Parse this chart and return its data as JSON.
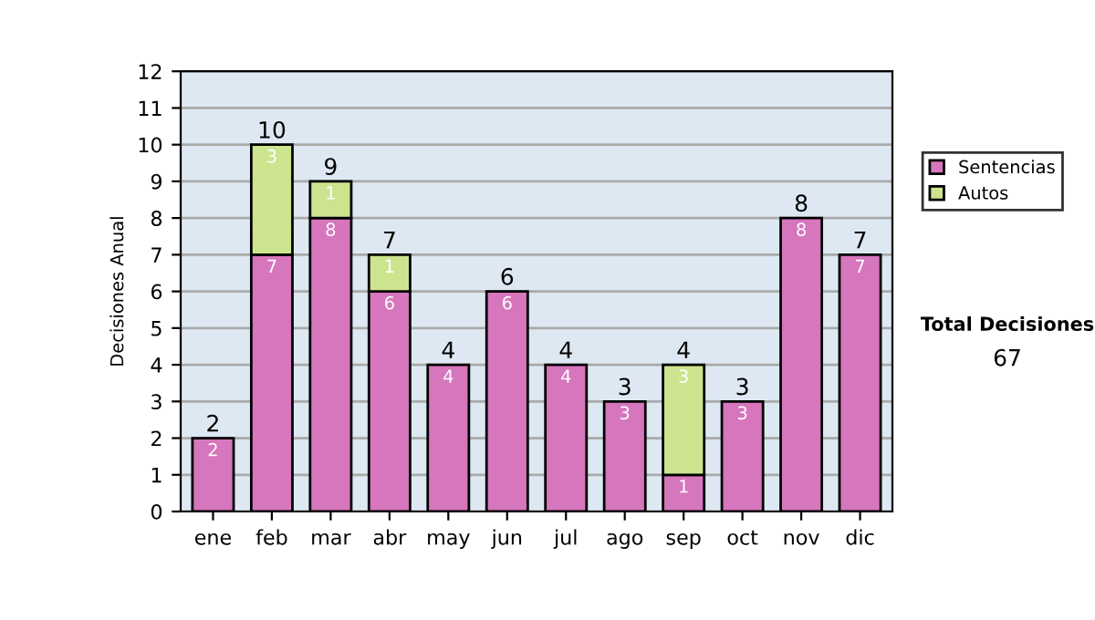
{
  "chart_data": {
    "type": "bar",
    "stacked": true,
    "ylabel": "Decisiones Anual",
    "categories": [
      "ene",
      "feb",
      "mar",
      "abr",
      "may",
      "jun",
      "jul",
      "ago",
      "sep",
      "oct",
      "nov",
      "dic"
    ],
    "series": [
      {
        "name": "Sentencias",
        "color": "#d676bd",
        "values": [
          2,
          7,
          8,
          6,
          4,
          6,
          4,
          3,
          1,
          3,
          8,
          7
        ],
        "value_labels": [
          "2",
          "7",
          "8",
          "6",
          "4",
          "6",
          "4",
          "3",
          "1",
          "3",
          "8",
          "7"
        ]
      },
      {
        "name": "Autos",
        "color": "#cde48e",
        "values": [
          null,
          3,
          1,
          1,
          null,
          null,
          null,
          null,
          3,
          null,
          null,
          null
        ],
        "value_labels": [
          null,
          "3",
          "1",
          "1",
          null,
          null,
          null,
          null,
          "3",
          null,
          null,
          null
        ]
      }
    ],
    "totals": [
      "2",
      "10",
      "9",
      "7",
      "4",
      "6",
      "4",
      "3",
      "4",
      "3",
      "8",
      "7"
    ],
    "ylim": [
      0,
      12
    ],
    "yticks": [
      0,
      1,
      2,
      3,
      4,
      5,
      6,
      7,
      8,
      9,
      10,
      11,
      12
    ],
    "grid": "y",
    "legend": "right",
    "annotations": [
      "Total Decisiones",
      "67"
    ]
  }
}
